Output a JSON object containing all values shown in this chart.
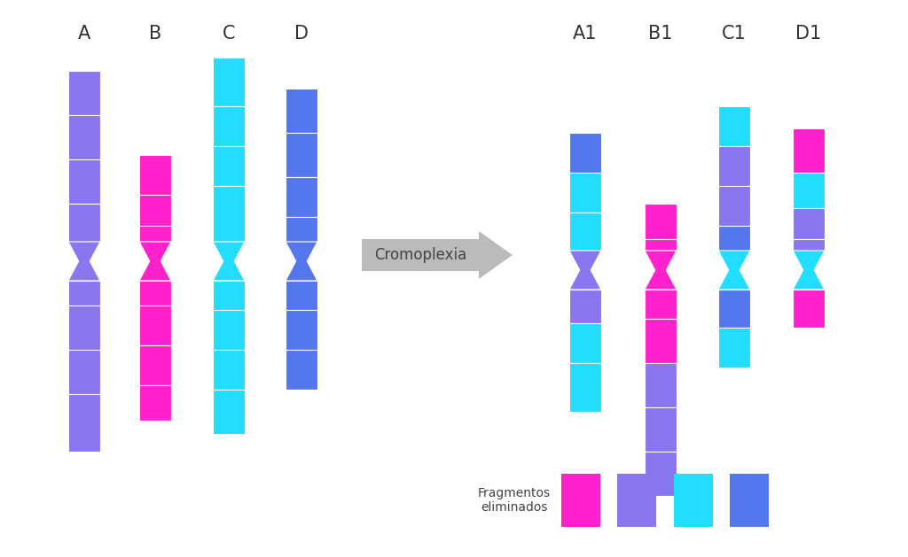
{
  "bg_color": "#ffffff",
  "colors": {
    "purple": "#8877EE",
    "magenta": "#FF22CC",
    "cyan": "#22DDFF",
    "blue": "#5577EE"
  },
  "arrow_color": "#AAAAAA",
  "arrow_text_color": "#444444",
  "arrow_label": "Cromoplexia",
  "frag_label": "Fragmentos\neliminados",
  "left_labels": [
    "A",
    "B",
    "C",
    "D"
  ],
  "right_labels": [
    "A1",
    "B1",
    "C1",
    "D1"
  ],
  "label_fontsize": 15,
  "arrow_fontsize": 12,
  "frag_fontsize": 10
}
